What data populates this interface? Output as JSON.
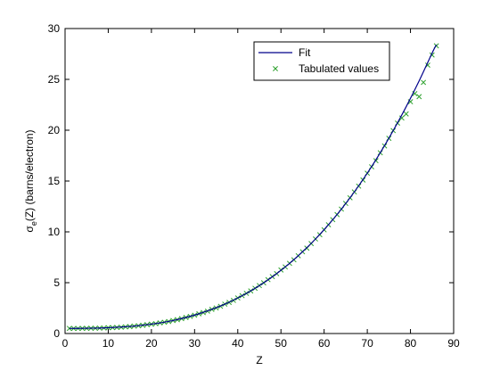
{
  "chart_data": {
    "type": "line",
    "title": "",
    "xlabel": "Z",
    "ylabel": "σe(Z) (barns/electron)",
    "ylabel_parts": {
      "symbol": "σ",
      "subscript": "e",
      "rest": "(Z) (barns/electron)"
    },
    "xlim": [
      0,
      90
    ],
    "ylim": [
      0,
      30
    ],
    "xticks": [
      0,
      10,
      20,
      30,
      40,
      50,
      60,
      70,
      80,
      90
    ],
    "yticks": [
      0,
      5,
      10,
      15,
      20,
      25,
      30
    ],
    "grid": false,
    "legend_position": "top-right",
    "series": [
      {
        "name": "Fit",
        "style": "line",
        "color": "#00008b",
        "x": [
          1,
          4,
          7,
          10,
          13,
          16,
          19,
          22,
          25,
          28,
          31,
          34,
          37,
          40,
          43,
          46,
          49,
          52,
          55,
          58,
          61,
          64,
          67,
          70,
          73,
          76,
          79,
          82,
          85,
          86
        ],
        "y": [
          0.5,
          0.51,
          0.53,
          0.57,
          0.64,
          0.73,
          0.87,
          1.05,
          1.28,
          1.58,
          1.94,
          2.38,
          2.89,
          3.5,
          4.19,
          4.99,
          5.89,
          6.9,
          8.04,
          9.3,
          10.7,
          12.24,
          13.93,
          15.77,
          17.78,
          19.96,
          22.31,
          24.85,
          27.58,
          28.4
        ]
      },
      {
        "name": "Tabulated values",
        "style": "scatter",
        "marker": "x",
        "color": "#2ca02c",
        "x": [
          1,
          2,
          3,
          4,
          5,
          6,
          7,
          8,
          9,
          10,
          11,
          12,
          13,
          14,
          15,
          16,
          17,
          18,
          19,
          20,
          21,
          22,
          23,
          24,
          25,
          26,
          27,
          28,
          29,
          30,
          31,
          32,
          33,
          34,
          35,
          36,
          37,
          38,
          39,
          40,
          41,
          42,
          43,
          44,
          45,
          46,
          47,
          48,
          49,
          50,
          51,
          52,
          53,
          54,
          55,
          56,
          57,
          58,
          59,
          60,
          61,
          62,
          63,
          64,
          65,
          66,
          67,
          68,
          69,
          70,
          71,
          72,
          73,
          74,
          75,
          76,
          77,
          78,
          79,
          80,
          81,
          82,
          83,
          84,
          85,
          86
        ],
        "y": [
          0.5,
          0.5,
          0.5,
          0.51,
          0.51,
          0.52,
          0.52,
          0.53,
          0.54,
          0.57,
          0.58,
          0.6,
          0.62,
          0.65,
          0.68,
          0.73,
          0.76,
          0.81,
          0.87,
          0.92,
          0.97,
          1.05,
          1.11,
          1.18,
          1.28,
          1.36,
          1.46,
          1.58,
          1.68,
          1.8,
          1.94,
          2.06,
          2.2,
          2.38,
          2.52,
          2.68,
          2.89,
          3.06,
          3.26,
          3.5,
          3.72,
          3.95,
          4.19,
          4.45,
          4.72,
          4.99,
          5.3,
          5.6,
          5.89,
          6.25,
          6.55,
          6.9,
          7.25,
          7.65,
          8.04,
          8.4,
          8.85,
          9.3,
          9.72,
          10.2,
          10.7,
          11.2,
          11.7,
          12.24,
          12.8,
          13.35,
          13.93,
          14.5,
          15.1,
          15.77,
          16.4,
          17.0,
          17.78,
          18.45,
          19.2,
          19.96,
          20.7,
          21.2,
          21.6,
          22.8,
          23.6,
          23.3,
          24.7,
          26.4,
          27.4,
          28.3
        ]
      }
    ]
  }
}
